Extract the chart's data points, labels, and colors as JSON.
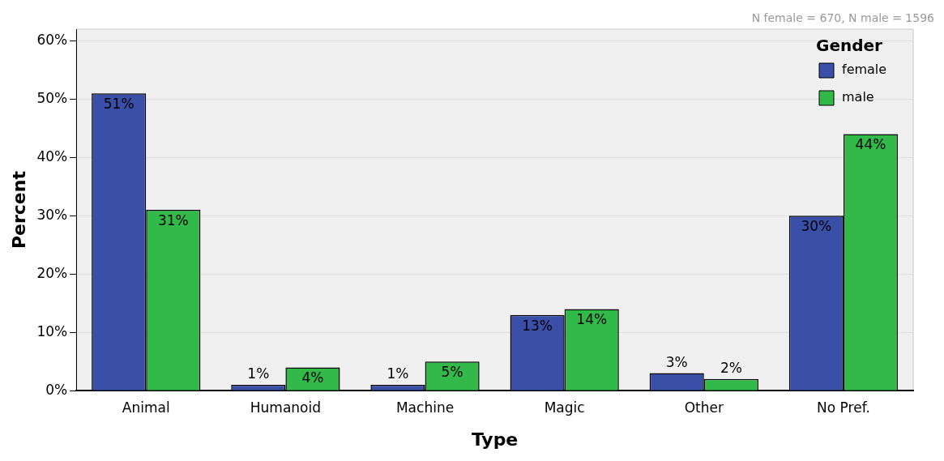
{
  "chart_data": {
    "type": "bar",
    "xlabel": "Type",
    "ylabel": "Percent",
    "legend_title": "Gender",
    "annotations": [
      "N female = 670, N male = 1596"
    ],
    "categories": [
      "Animal",
      "Humanoid",
      "Machine",
      "Magic",
      "Other",
      "No Pref."
    ],
    "series": [
      {
        "name": "female",
        "color": "#3a4fa8",
        "values": [
          51,
          1,
          1,
          13,
          3,
          30
        ],
        "value_labels": [
          "51%",
          "1%",
          "1%",
          "13%",
          "3%",
          "30%"
        ]
      },
      {
        "name": "male",
        "color": "#33b84a",
        "values": [
          31,
          4,
          5,
          14,
          2,
          44
        ],
        "value_labels": [
          "31%",
          "4%",
          "5%",
          "14%",
          "2%",
          "44%"
        ]
      }
    ],
    "ylim": [
      0,
      62
    ],
    "yticks": [
      {
        "value": 0,
        "label": "0%"
      },
      {
        "value": 10,
        "label": "10%"
      },
      {
        "value": 20,
        "label": "20%"
      },
      {
        "value": 30,
        "label": "30%"
      },
      {
        "value": 40,
        "label": "40%"
      },
      {
        "value": 50,
        "label": "50%"
      },
      {
        "value": 60,
        "label": "60%"
      }
    ],
    "grid": "y",
    "legend": "top right"
  }
}
